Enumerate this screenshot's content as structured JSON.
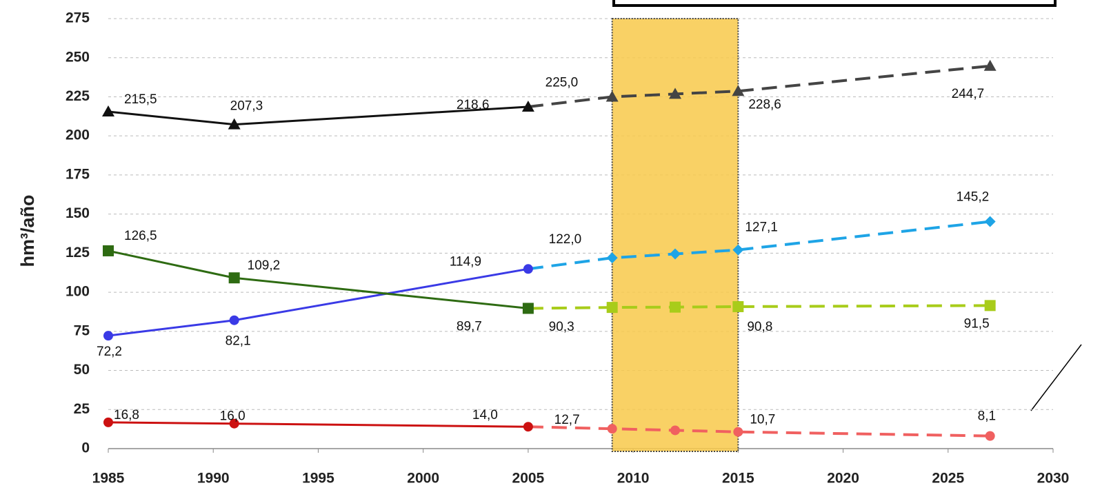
{
  "chart_data": {
    "type": "line",
    "y_label": "hm³/año",
    "x": [
      1985,
      1991,
      2005,
      2009,
      2012,
      2015,
      2027
    ],
    "xlim": [
      1985,
      2030
    ],
    "xticks": [
      1985,
      1990,
      1995,
      2000,
      2005,
      2010,
      2015,
      2020,
      2025,
      2030
    ],
    "ylim": [
      0,
      275
    ],
    "yticks": [
      0,
      25,
      50,
      75,
      100,
      125,
      150,
      175,
      200,
      225,
      250,
      275
    ],
    "grid": true,
    "highlight": {
      "xlim": [
        2009,
        2015
      ],
      "color": "#f8c94a"
    },
    "series": [
      {
        "color": "#111111",
        "marker": "triangle",
        "dashed": false,
        "values": [
          215.5,
          207.3,
          218.6,
          null,
          null,
          null,
          null
        ],
        "value_labels": [
          "215,5",
          "207,3",
          "218,6",
          null,
          null,
          null,
          null
        ]
      },
      {
        "color": "#444444",
        "marker": "triangle",
        "dashed": true,
        "values": [
          null,
          null,
          218.6,
          225.0,
          226.8,
          228.6,
          244.7
        ],
        "value_labels": [
          null,
          null,
          null,
          "225,0",
          null,
          "228,6",
          "244,7"
        ]
      },
      {
        "color": "#3a3ae6",
        "marker": "circle",
        "dashed": false,
        "values": [
          72.2,
          82.1,
          114.9,
          null,
          null,
          null,
          null
        ],
        "value_labels": [
          "72,2",
          "82,1",
          "114,9",
          null,
          null,
          null,
          null
        ]
      },
      {
        "color": "#1ea4e6",
        "marker": "diamond",
        "dashed": true,
        "values": [
          null,
          null,
          114.9,
          122.0,
          124.5,
          127.1,
          145.2
        ],
        "value_labels": [
          null,
          null,
          null,
          "122,0",
          null,
          "127,1",
          "145,2"
        ]
      },
      {
        "color": "#2e6b12",
        "marker": "square",
        "dashed": false,
        "values": [
          126.5,
          109.2,
          89.7,
          null,
          null,
          null,
          null
        ],
        "value_labels": [
          "126,5",
          "109,2",
          "89,7",
          null,
          null,
          null,
          null
        ]
      },
      {
        "color": "#a8cc1a",
        "marker": "square",
        "dashed": true,
        "values": [
          null,
          null,
          89.7,
          90.3,
          90.5,
          90.8,
          91.5
        ],
        "value_labels": [
          null,
          null,
          null,
          "90,3",
          null,
          "90,8",
          "91,5"
        ]
      },
      {
        "color": "#cc1111",
        "marker": "circle",
        "dashed": false,
        "values": [
          16.8,
          16.0,
          14.0,
          null,
          null,
          null,
          null
        ],
        "value_labels": [
          "16,8",
          "16,0",
          "14,0",
          null,
          null,
          null,
          null
        ]
      },
      {
        "color": "#f06060",
        "marker": "circle",
        "dashed": true,
        "values": [
          null,
          null,
          14.0,
          12.7,
          11.7,
          10.7,
          8.1
        ],
        "value_labels": [
          null,
          null,
          null,
          "12,7",
          null,
          "10,7",
          "8,1"
        ]
      }
    ]
  }
}
